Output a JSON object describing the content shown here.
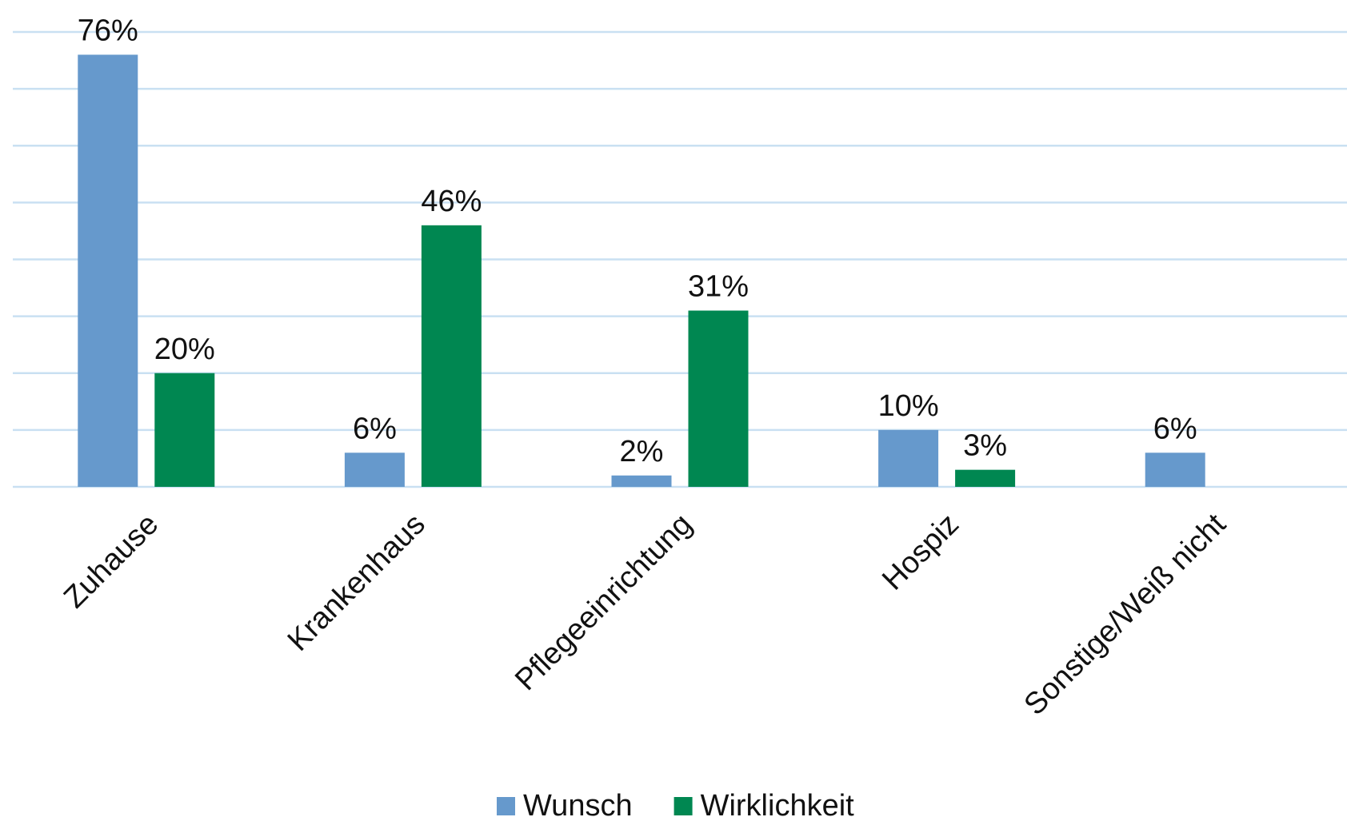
{
  "chart_data": {
    "type": "bar",
    "categories": [
      "Zuhause",
      "Krankenhaus",
      "Pflegeeinrichtung",
      "Hospiz",
      "Sonstige/Weiß nicht"
    ],
    "series": [
      {
        "name": "Wunsch",
        "color": "#6699cc",
        "values": [
          76,
          6,
          2,
          10,
          6
        ],
        "value_labels": [
          "76%",
          "6%",
          "2%",
          "10%",
          "6%"
        ]
      },
      {
        "name": "Wirklichkeit",
        "color": "#008751",
        "values": [
          20,
          46,
          31,
          3,
          null
        ],
        "value_labels": [
          "20%",
          "46%",
          "31%",
          "3%",
          null
        ]
      }
    ],
    "ylim": [
      0,
      80
    ],
    "yticks": [
      0,
      10,
      20,
      30,
      40,
      50,
      60,
      70,
      80
    ],
    "grid": true,
    "legend": "bottom"
  }
}
